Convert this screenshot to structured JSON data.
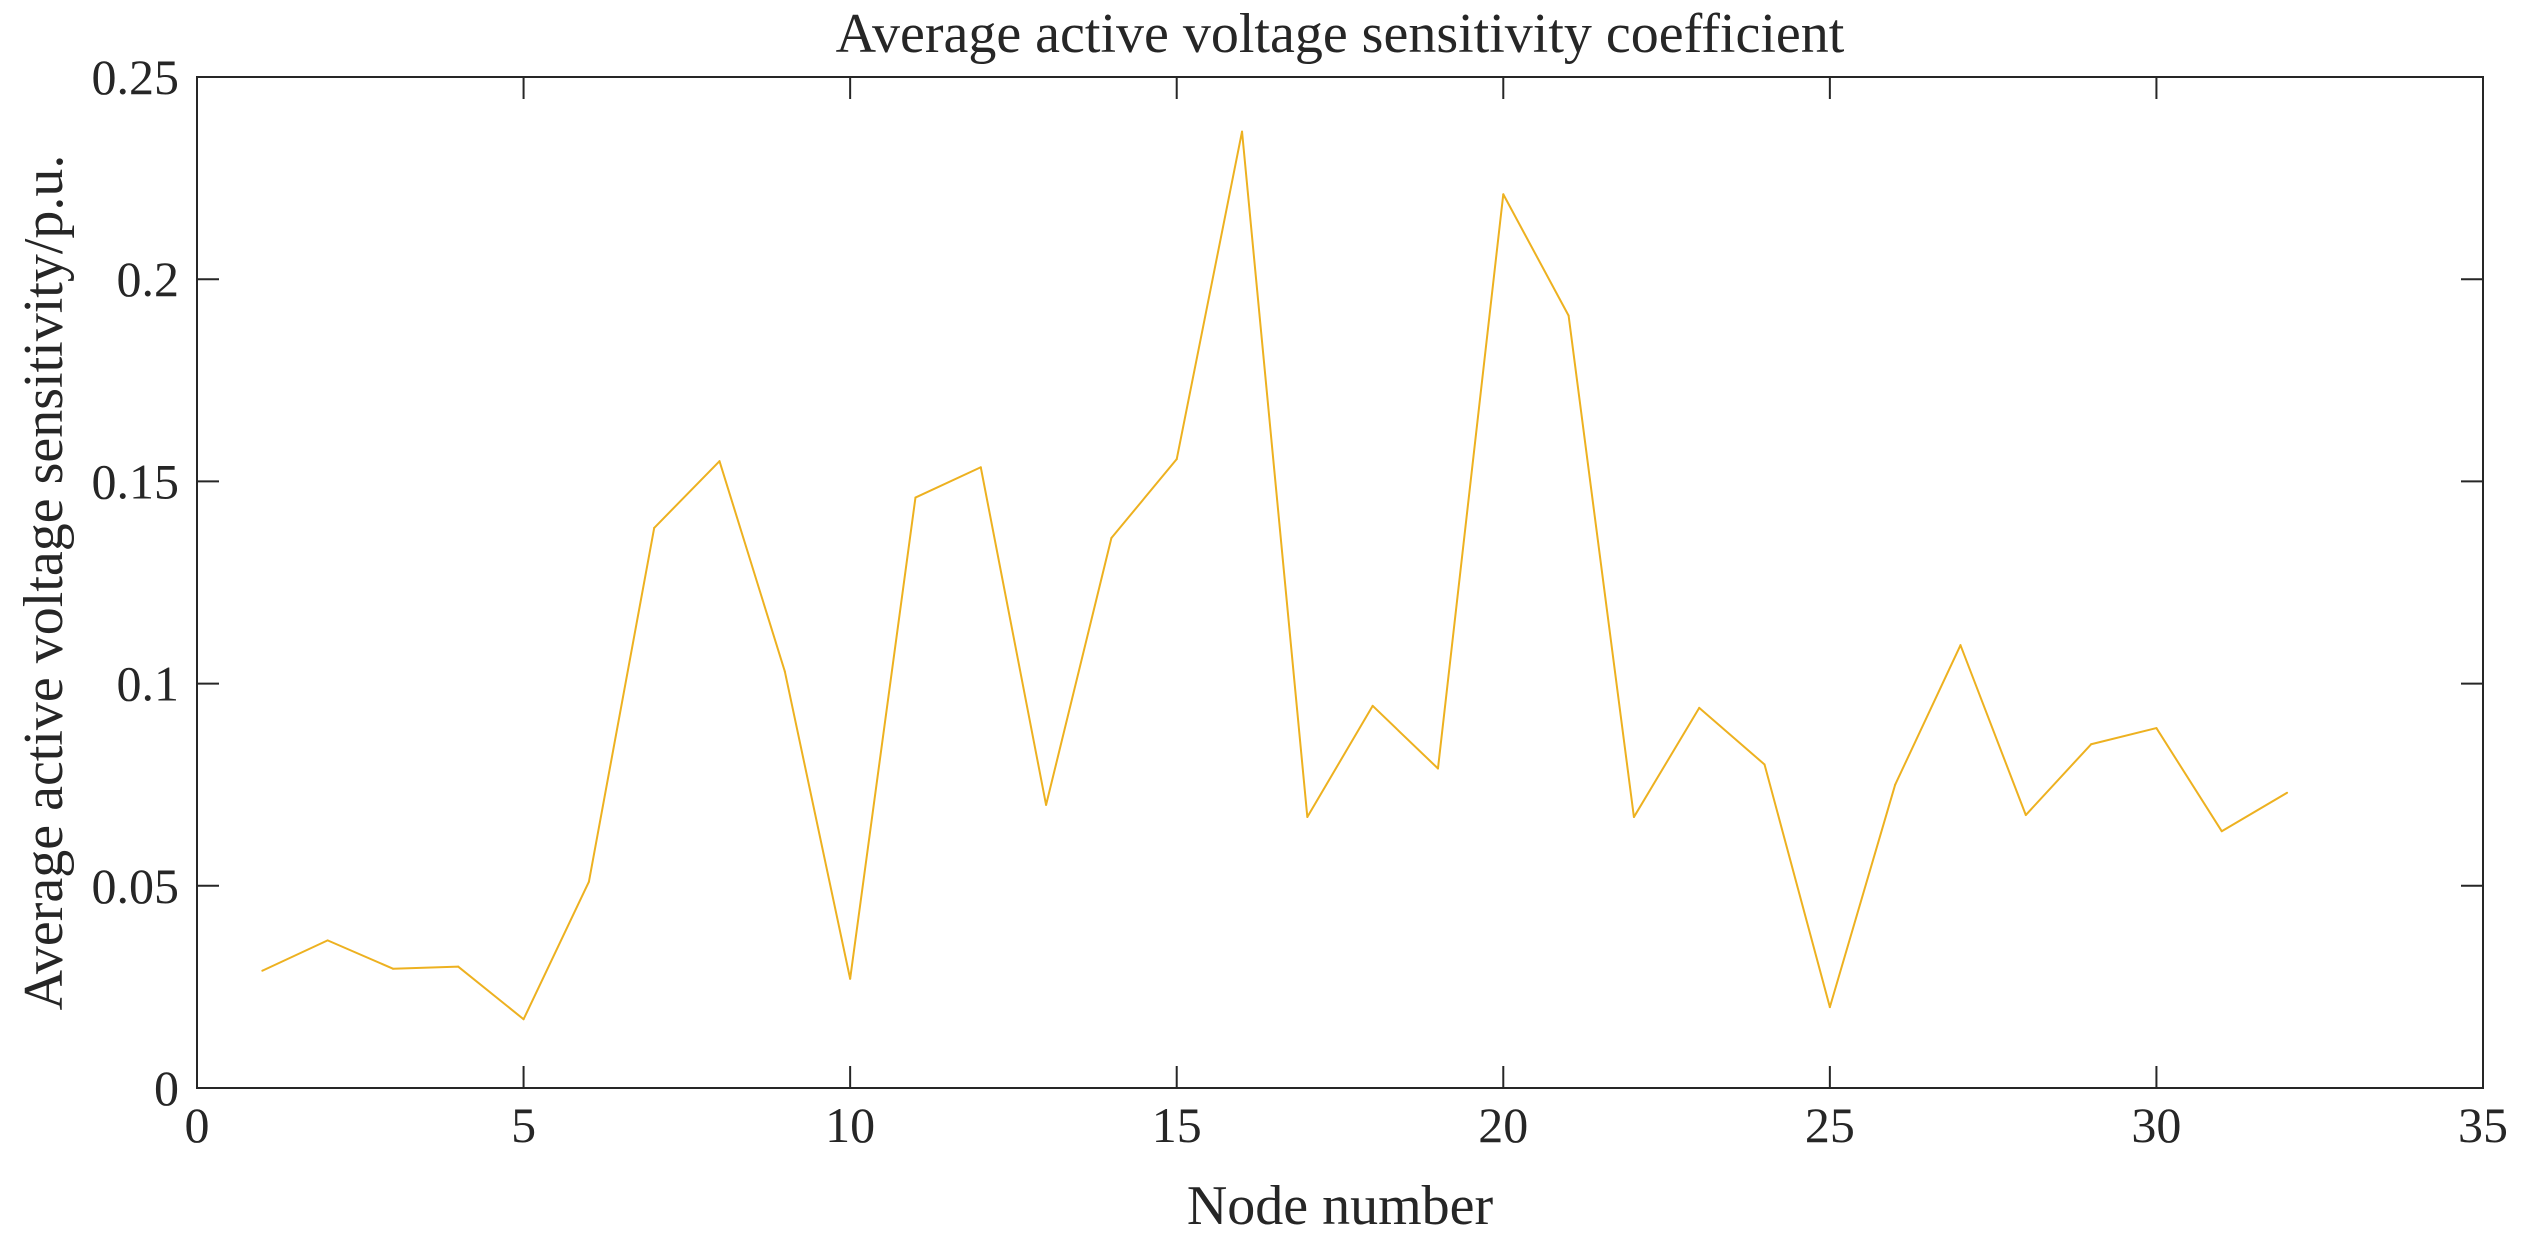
{
  "chart_data": {
    "type": "line",
    "title": "Average active voltage sensitivity coefficient",
    "xlabel": "Node number",
    "ylabel": "Average active voltage sensitivity/p.u.",
    "xlim": [
      0,
      35
    ],
    "ylim": [
      0,
      0.25
    ],
    "xticks": [
      0,
      5,
      10,
      15,
      20,
      25,
      30,
      35
    ],
    "yticks": [
      0,
      0.05,
      0.1,
      0.15,
      0.2,
      0.25
    ],
    "xtick_labels": [
      "0",
      "5",
      "10",
      "15",
      "20",
      "25",
      "30",
      "35"
    ],
    "ytick_labels": [
      "0",
      "0.05",
      "0.1",
      "0.15",
      "0.2",
      "0.25"
    ],
    "grid": false,
    "box": true,
    "line_color": "#EDB120",
    "series": [
      {
        "x": [
          1,
          2,
          3,
          4,
          5,
          6,
          7,
          8,
          9,
          10,
          11,
          12,
          13,
          14,
          15,
          16,
          17,
          18,
          19,
          20,
          21,
          22,
          23,
          24,
          25,
          26,
          27,
          28,
          29,
          30,
          31,
          32
        ],
        "values": [
          0.029,
          0.0365,
          0.0295,
          0.03,
          0.017,
          0.051,
          0.1385,
          0.155,
          0.103,
          0.027,
          0.146,
          0.1535,
          0.07,
          0.136,
          0.1555,
          0.2365,
          0.067,
          0.0945,
          0.079,
          0.221,
          0.191,
          0.067,
          0.094,
          0.08,
          0.02,
          0.075,
          0.1095,
          0.0675,
          0.085,
          0.089,
          0.0635,
          0.073
        ]
      }
    ]
  }
}
